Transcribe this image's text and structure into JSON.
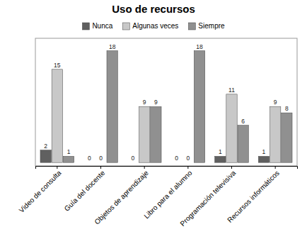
{
  "chart_data": {
    "type": "bar",
    "title": "Uso de recursos",
    "categories": [
      "Video de consulta",
      "Guía del docente",
      "Objetos de aprendizaje",
      "Libro para el alumno",
      "Programación televisiva",
      "Recursos informáticos"
    ],
    "series": [
      {
        "name": "Nunca",
        "color": "#606060",
        "values": [
          2,
          0,
          0,
          0,
          1,
          1
        ]
      },
      {
        "name": "Algunas veces",
        "color": "#c8c8c8",
        "values": [
          15,
          0,
          9,
          0,
          11,
          9
        ]
      },
      {
        "name": "Siempre",
        "color": "#909090",
        "values": [
          1,
          18,
          9,
          18,
          6,
          8
        ]
      }
    ],
    "ylim": [
      -0.55,
      20
    ],
    "yticks": [],
    "tick_labels": "x",
    "data_labels": true,
    "legend": "top"
  }
}
